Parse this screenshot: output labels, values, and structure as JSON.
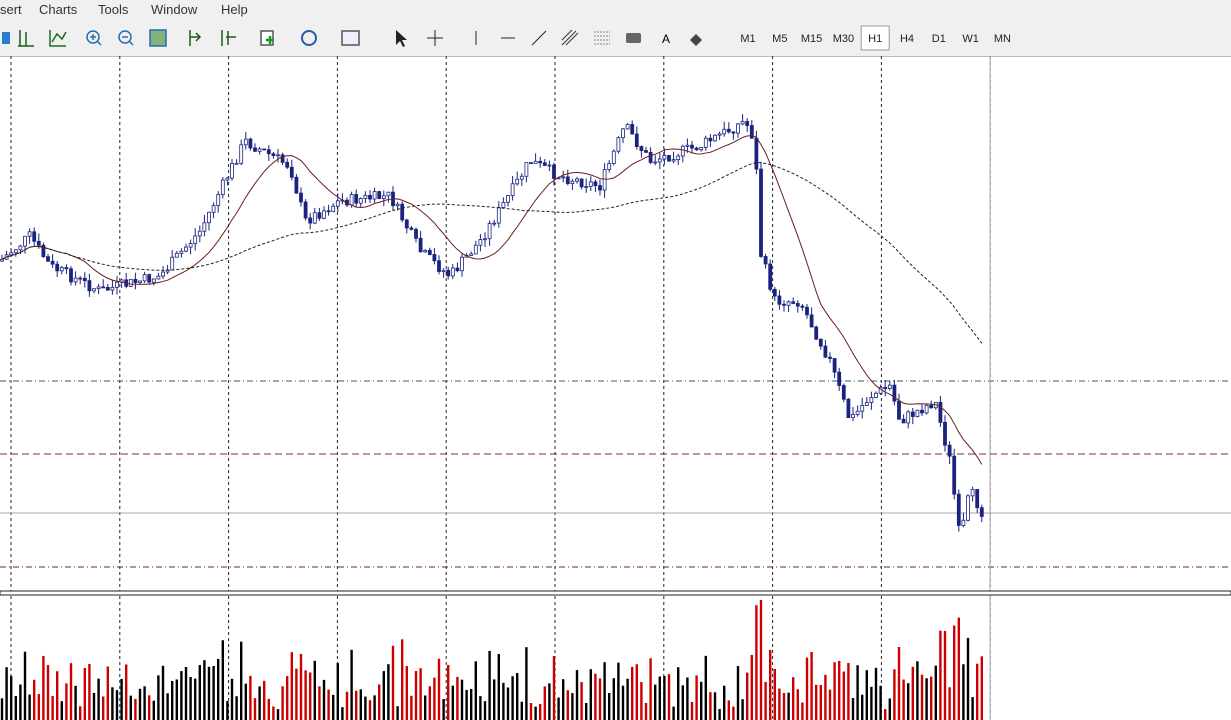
{
  "menu": [
    "sert",
    "Charts",
    "Tools",
    "Window",
    "Help"
  ],
  "toolbar": {
    "text_tool": "A",
    "timeframes": [
      "M1",
      "M5",
      "M15",
      "M30",
      "H1",
      "H4",
      "D1",
      "W1",
      "MN"
    ],
    "active_timeframe": "H1"
  }
}
